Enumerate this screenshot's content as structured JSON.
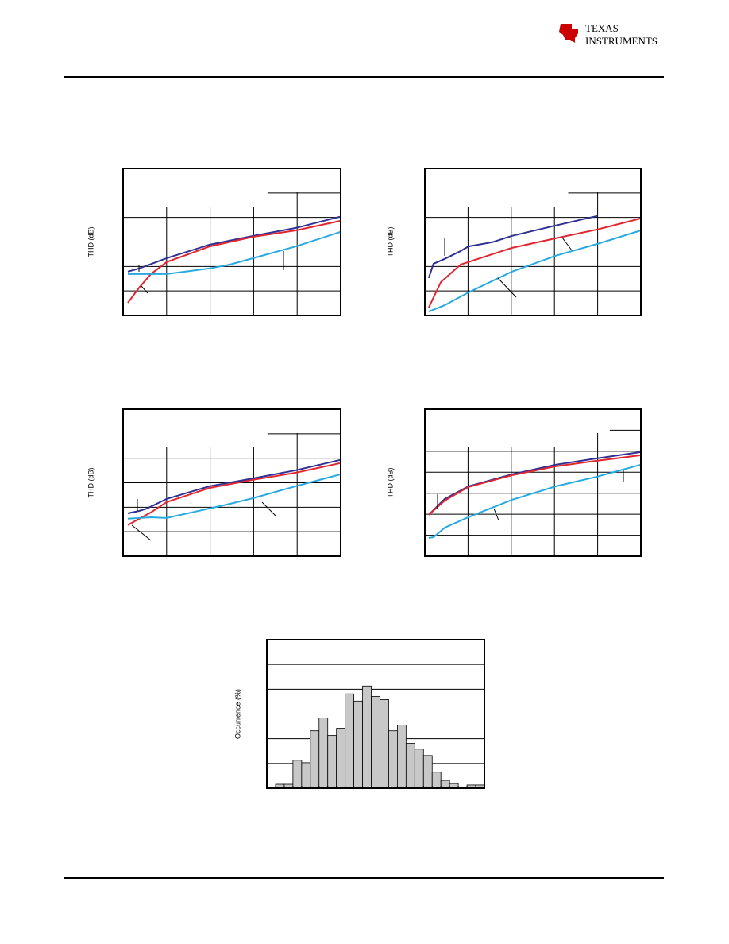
{
  "header": {
    "logo_line1": "TEXAS",
    "logo_line2": "INSTRUMENTS"
  },
  "chart_data": [
    {
      "type": "line",
      "y_label": "THD (dB)",
      "xlim": [
        0,
        5
      ],
      "ylim": [
        0,
        6
      ],
      "xticks": [
        1,
        2,
        3,
        4
      ],
      "yticks": [
        1,
        2,
        3,
        4,
        5
      ],
      "grid": true,
      "series": [
        {
          "color": "#2e3192",
          "x": [
            0.11,
            0.37,
            1.0,
            1.99,
            2.99,
            3.97,
            4.99
          ],
          "values": [
            1.79,
            1.92,
            2.34,
            2.89,
            3.25,
            3.57,
            4.03
          ]
        },
        {
          "color": "#e0262f",
          "x": [
            0.11,
            0.37,
            0.64,
            1.0,
            1.99,
            2.99,
            3.97,
            4.99
          ],
          "values": [
            0.52,
            1.14,
            1.69,
            2.18,
            2.82,
            3.21,
            3.47,
            3.86
          ]
        },
        {
          "color": "#27a9e1",
          "x": [
            0.11,
            1.0,
            1.99,
            2.46,
            2.99,
            3.97,
            4.99
          ],
          "values": [
            1.69,
            1.69,
            1.92,
            2.08,
            2.34,
            2.82,
            3.41
          ]
        }
      ]
    },
    {
      "type": "line",
      "y_label": "THD (dB)",
      "xlim": [
        0,
        5
      ],
      "ylim": [
        0,
        6
      ],
      "xticks": [
        1,
        2,
        3,
        4
      ],
      "yticks": [
        1,
        2,
        3,
        4,
        5
      ],
      "grid": true,
      "series": [
        {
          "color": "#2e3192",
          "x": [
            0.09,
            0.2,
            0.46,
            0.83,
            1.01,
            1.56,
            2.02,
            3.03,
            3.99
          ],
          "values": [
            1.53,
            2.11,
            2.31,
            2.63,
            2.82,
            2.99,
            3.25,
            3.67,
            4.06
          ]
        },
        {
          "color": "#e0262f",
          "x": [
            0.09,
            0.37,
            0.83,
            1.56,
            2.02,
            3.03,
            3.99,
            5
          ],
          "values": [
            0.32,
            1.36,
            2.08,
            2.5,
            2.76,
            3.15,
            3.51,
            3.96
          ]
        },
        {
          "color": "#27a9e1",
          "x": [
            0.09,
            0.46,
            1.01,
            2.02,
            3.03,
            3.99,
            5
          ],
          "values": [
            0.16,
            0.42,
            0.94,
            1.79,
            2.44,
            2.92,
            3.47
          ]
        }
      ]
    },
    {
      "type": "line",
      "y_label": "THD (dB)",
      "xlim": [
        0,
        5
      ],
      "ylim": [
        0,
        6
      ],
      "xticks": [
        1,
        2,
        3,
        4
      ],
      "yticks": [
        1,
        2,
        3,
        4,
        5
      ],
      "grid": true,
      "series": [
        {
          "color": "#2e3192",
          "x": [
            0.11,
            0.37,
            0.55,
            1.0,
            1.99,
            2.99,
            3.97,
            4.99
          ],
          "values": [
            1.75,
            1.85,
            1.95,
            2.34,
            2.86,
            3.18,
            3.51,
            3.93
          ]
        },
        {
          "color": "#e0262f",
          "x": [
            0.11,
            0.64,
            1.0,
            1.99,
            2.99,
            3.97,
            4.99
          ],
          "values": [
            1.27,
            1.79,
            2.21,
            2.79,
            3.12,
            3.41,
            3.8
          ]
        },
        {
          "color": "#27a9e1",
          "x": [
            0.11,
            0.64,
            1.0,
            1.99,
            2.46,
            2.99,
            3.97,
            4.99
          ],
          "values": [
            1.53,
            1.59,
            1.56,
            1.95,
            2.14,
            2.37,
            2.86,
            3.34
          ]
        }
      ]
    },
    {
      "type": "line",
      "y_label": "THD (dB)",
      "xlim": [
        0,
        5
      ],
      "ylim": [
        0,
        7
      ],
      "xticks": [
        1,
        2,
        3,
        4
      ],
      "yticks": [
        1,
        2,
        3,
        4,
        5,
        6
      ],
      "grid": true,
      "series": [
        {
          "color": "#2e3192",
          "x": [
            0.09,
            0.46,
            1.01,
            2.02,
            3.03,
            3.99,
            5
          ],
          "values": [
            1.97,
            2.73,
            3.33,
            3.9,
            4.36,
            4.66,
            4.96
          ]
        },
        {
          "color": "#e0262f",
          "x": [
            0.09,
            0.46,
            1.01,
            2.02,
            3.03,
            3.99,
            5
          ],
          "values": [
            1.97,
            2.65,
            3.3,
            3.86,
            4.28,
            4.55,
            4.81
          ]
        },
        {
          "color": "#27a9e1",
          "x": [
            0.09,
            0.2,
            0.46,
            1.01,
            2.02,
            3.03,
            3.99,
            5
          ],
          "values": [
            0.87,
            0.91,
            1.36,
            1.86,
            2.69,
            3.33,
            3.79,
            4.36
          ]
        }
      ]
    },
    {
      "type": "histogram",
      "y_label": "Occurrence (%)",
      "color": "#c8c8c8",
      "xlim": [
        0,
        25
      ],
      "ylim": [
        0,
        6
      ],
      "yticks": [
        1,
        2,
        3,
        4,
        5
      ],
      "grid": true,
      "bins": [
        1,
        2,
        3,
        4,
        5,
        6,
        7,
        8,
        9,
        10,
        11,
        12,
        13,
        14,
        15,
        16,
        17,
        18,
        19,
        20,
        21,
        22,
        23,
        24,
        25
      ],
      "values": [
        0.16,
        0.16,
        1.13,
        1.03,
        2.32,
        2.84,
        2.13,
        2.42,
        3.81,
        3.52,
        4.13,
        3.71,
        3.58,
        2.32,
        2.55,
        1.81,
        1.58,
        1.32,
        0.65,
        0.32,
        0.19,
        0,
        0.13,
        0.13
      ]
    }
  ]
}
